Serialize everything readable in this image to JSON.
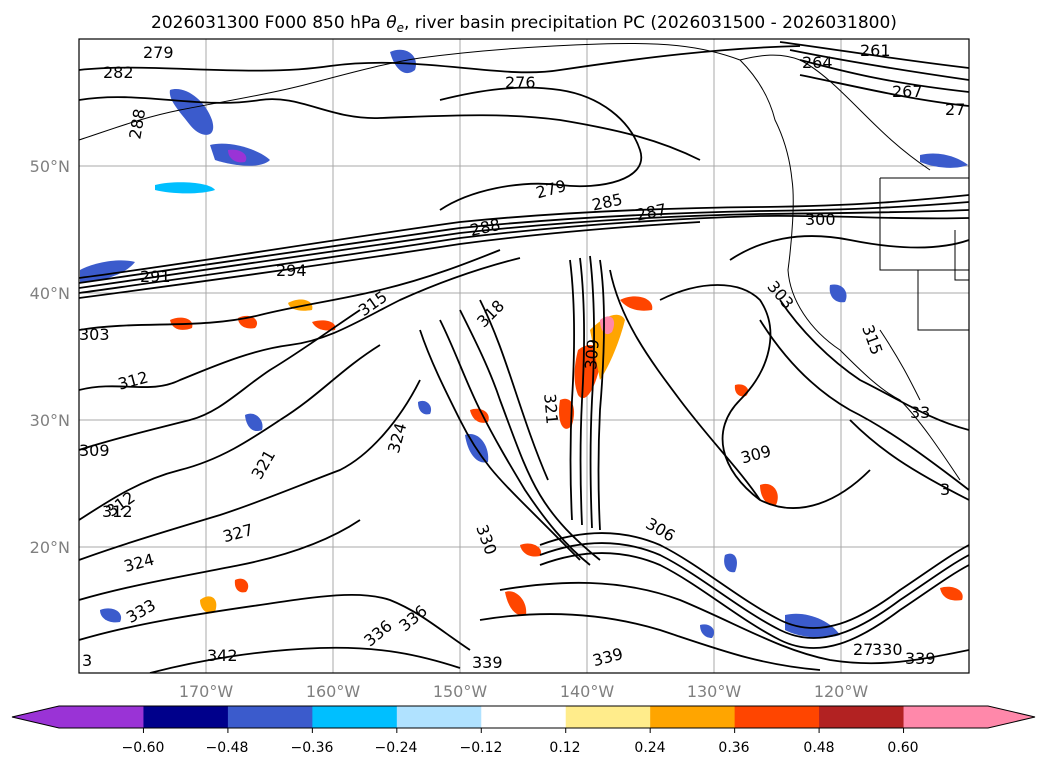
{
  "title": "2026031300 F000 850 hPa θe, river basin precipitation PC (2026031500 - 2026031800)",
  "title_parts": {
    "prefix": "2026031300 F000 850 hPa ",
    "theta_symbol": "θ",
    "theta_subscript": "e",
    "suffix": ", river basin precipitation PC (2026031500 - 2026031800)"
  },
  "map": {
    "lat_labels": [
      "50°N",
      "40°N",
      "30°N",
      "20°N"
    ],
    "lon_labels": [
      "170°W",
      "160°W",
      "150°W",
      "140°W",
      "130°W",
      "120°W"
    ],
    "contour_labels": [
      "279",
      "282",
      "288",
      "276",
      "267",
      "261",
      "264",
      "27",
      "279",
      "285",
      "287",
      "288",
      "300",
      "291",
      "294",
      "315",
      "318",
      "303",
      "309",
      "303",
      "315",
      "312",
      "309",
      "312",
      "321",
      "324",
      "321",
      "309",
      "306",
      "312",
      "327",
      "324",
      "330",
      "333",
      "336",
      "336",
      "342",
      "339",
      "339",
      "27",
      "330",
      "339",
      "3",
      "33",
      "3"
    ]
  },
  "colorbar": {
    "colors": [
      "#9a33d6",
      "#00008b",
      "#3b5bcc",
      "#00bfff",
      "#b0e2ff",
      "#ffffff",
      "#ffec8b",
      "#ffa500",
      "#ff4500",
      "#b22222",
      "#ff88aa"
    ],
    "tick_labels": [
      "−0.60",
      "−0.48",
      "−0.36",
      "−0.24",
      "−0.12",
      "0.12",
      "0.24",
      "0.36",
      "0.48",
      "0.60"
    ]
  },
  "chart_data": {
    "type": "contour map",
    "title": "2026031300 F000 850 hPa θe, river basin precipitation PC (2026031500 - 2026031800)",
    "field": "850 hPa equivalent potential temperature (K) contours with shaded precipitation PC",
    "lat_range": [
      10,
      60
    ],
    "lon_range": [
      -180,
      -110
    ],
    "colorbar_levels": [
      -0.6,
      -0.48,
      -0.36,
      -0.24,
      -0.12,
      0.12,
      0.24,
      0.36,
      0.48,
      0.6
    ],
    "colorbar_extend": "both"
  }
}
